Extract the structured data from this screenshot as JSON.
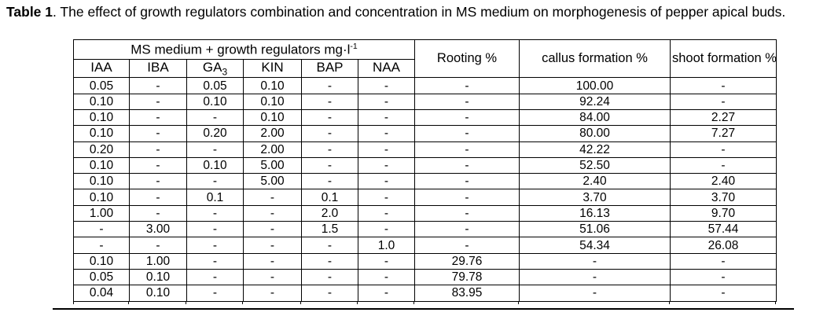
{
  "caption": {
    "label": "Table 1",
    "text": ". The effect of growth regulators combination and concentration in MS medium on morphogenesis of pepper apical buds."
  },
  "table": {
    "group_header": {
      "text": "MS medium + growth regulators mg·l",
      "superscript": "-1"
    },
    "regulator_columns": [
      {
        "name": "IAA",
        "sub": ""
      },
      {
        "name": "IBA",
        "sub": ""
      },
      {
        "name": "GA",
        "sub": "3"
      },
      {
        "name": "KIN",
        "sub": ""
      },
      {
        "name": "BAP",
        "sub": ""
      },
      {
        "name": "NAA",
        "sub": ""
      }
    ],
    "result_columns": [
      "Rooting %",
      "callus formation %",
      "shoot\nformation %"
    ],
    "rows": [
      [
        "0.05",
        "-",
        "0.05",
        "0.10",
        "-",
        "-",
        "-",
        "100.00",
        "-"
      ],
      [
        "0.10",
        "-",
        "0.10",
        "0.10",
        "-",
        "-",
        "-",
        "92.24",
        "-"
      ],
      [
        "0.10",
        "-",
        "-",
        "0.10",
        "-",
        "-",
        "-",
        "84.00",
        "2.27"
      ],
      [
        "0.10",
        "-",
        "0.20",
        "2.00",
        "-",
        "-",
        "-",
        "80.00",
        "7.27"
      ],
      [
        "0.20",
        "-",
        "-",
        "2.00",
        "-",
        "-",
        "-",
        "42.22",
        "-"
      ],
      [
        "0.10",
        "-",
        "0.10",
        "5.00",
        "-",
        "-",
        "-",
        "52.50",
        "-"
      ],
      [
        "0.10",
        "-",
        "-",
        "5.00",
        "-",
        "-",
        "-",
        "2.40",
        "2.40"
      ],
      [
        "0.10",
        "-",
        "0.1",
        "-",
        "0.1",
        "-",
        "-",
        "3.70",
        "3.70"
      ],
      [
        "1.00",
        "-",
        "-",
        "-",
        "2.0",
        "-",
        "-",
        "16.13",
        "9.70"
      ],
      [
        "-",
        "3.00",
        "-",
        "-",
        "1.5",
        "-",
        "-",
        "51.06",
        "57.44"
      ],
      [
        "-",
        "-",
        "-",
        "-",
        "-",
        "1.0",
        "-",
        "54.34",
        "26.08"
      ],
      [
        "0.10",
        "1.00",
        "-",
        "-",
        "-",
        "-",
        "29.76",
        "-",
        "-"
      ],
      [
        "0.05",
        "0.10",
        "-",
        "-",
        "-",
        "-",
        "79.78",
        "-",
        "-"
      ],
      [
        "0.04",
        "0.10",
        "-",
        "-",
        "-",
        "-",
        "83.95",
        "-",
        "-"
      ]
    ]
  }
}
